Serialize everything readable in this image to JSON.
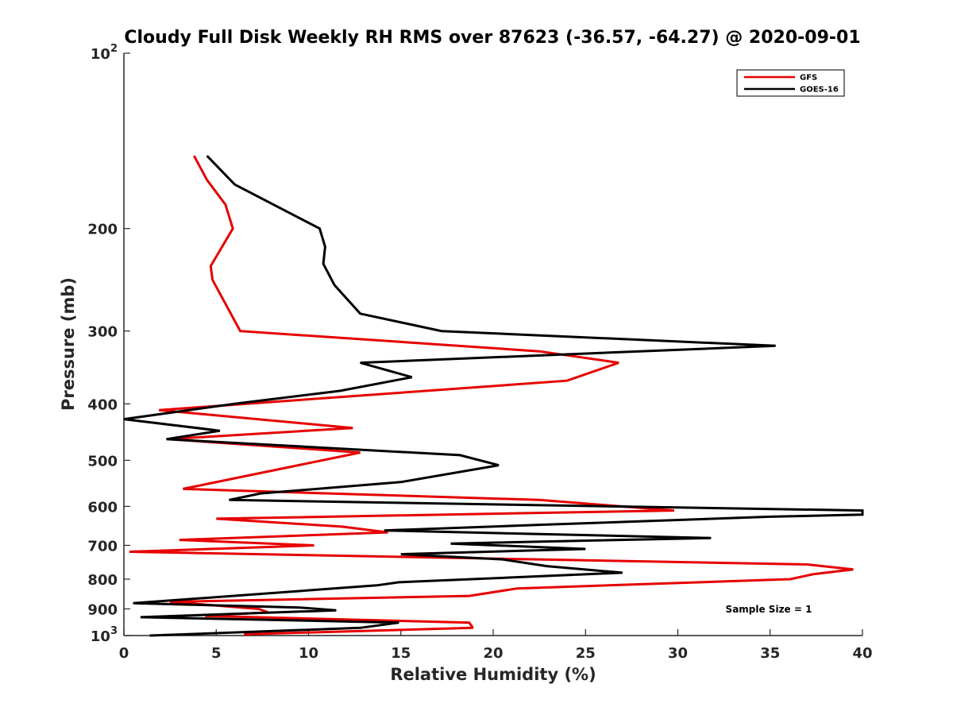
{
  "chart_data": {
    "type": "line",
    "title": "Cloudy Full Disk Weekly RH RMS over 87623 (-36.57, -64.27) @ 2020-09-01",
    "xlabel": "Relative Humidity (%)",
    "ylabel": "Pressure (mb)",
    "xlim": [
      0,
      40
    ],
    "ylim": [
      1000,
      100
    ],
    "y_scale": "log",
    "x_ticks": [
      "0",
      "5",
      "10",
      "15",
      "20",
      "25",
      "30",
      "35",
      "40"
    ],
    "y_ticks": [
      {
        "value": 100,
        "base": "10",
        "exp": "2"
      },
      {
        "value": 200,
        "label": "200"
      },
      {
        "value": 300,
        "label": "300"
      },
      {
        "value": 400,
        "label": "400"
      },
      {
        "value": 500,
        "label": "500"
      },
      {
        "value": 600,
        "label": "600"
      },
      {
        "value": 700,
        "label": "700"
      },
      {
        "value": 800,
        "label": "800"
      },
      {
        "value": 900,
        "label": "900"
      },
      {
        "value": 1000,
        "base": "10",
        "exp": "3"
      }
    ],
    "grid": false,
    "legend_position": "top-right",
    "annotation": "Sample Size = 1",
    "series": [
      {
        "name": "GFS",
        "color": "#e60000",
        "x": [
          3.8,
          4.5,
          5.5,
          5.9,
          4.7,
          4.8,
          6.3,
          22.5,
          26.8,
          24.0,
          1.9,
          12.4,
          2.4,
          12.8,
          3.2,
          22.5,
          29.8,
          5.0,
          11.8,
          14.3,
          3.0,
          10.3,
          0.3,
          37.0,
          39.5,
          37.3,
          36.1,
          21.3,
          18.7,
          2.5,
          7.3,
          7.8,
          4.4,
          18.7,
          18.9,
          6.5
        ],
        "y": [
          150,
          165,
          182,
          200,
          232,
          245,
          300,
          325,
          340,
          365,
          410,
          440,
          460,
          485,
          560,
          585,
          610,
          630,
          650,
          665,
          685,
          700,
          718,
          755,
          770,
          785,
          800,
          830,
          855,
          875,
          900,
          912,
          925,
          950,
          970,
          995
        ]
      },
      {
        "name": "GOES-16",
        "color": "#000000",
        "x": [
          4.5,
          6.0,
          10.6,
          10.9,
          10.8,
          11.4,
          12.8,
          17.2,
          35.3,
          12.8,
          15.6,
          11.7,
          6.0,
          0.0,
          5.2,
          2.3,
          18.2,
          20.3,
          15.0,
          7.4,
          5.7,
          40.0,
          40.0,
          35.0,
          22.8,
          14.1,
          31.8,
          17.7,
          25.0,
          15.0,
          20.5,
          22.9,
          27.0,
          14.9,
          13.7,
          0.5,
          9.5,
          11.5,
          0.9,
          14.9,
          12.8,
          1.4
        ],
        "y": [
          150,
          168,
          200,
          215,
          230,
          250,
          280,
          300,
          318,
          340,
          360,
          380,
          400,
          425,
          445,
          460,
          490,
          510,
          545,
          570,
          585,
          610,
          620,
          625,
          645,
          660,
          680,
          695,
          710,
          725,
          740,
          760,
          780,
          810,
          820,
          880,
          895,
          905,
          930,
          950,
          970,
          1000
        ]
      }
    ]
  }
}
